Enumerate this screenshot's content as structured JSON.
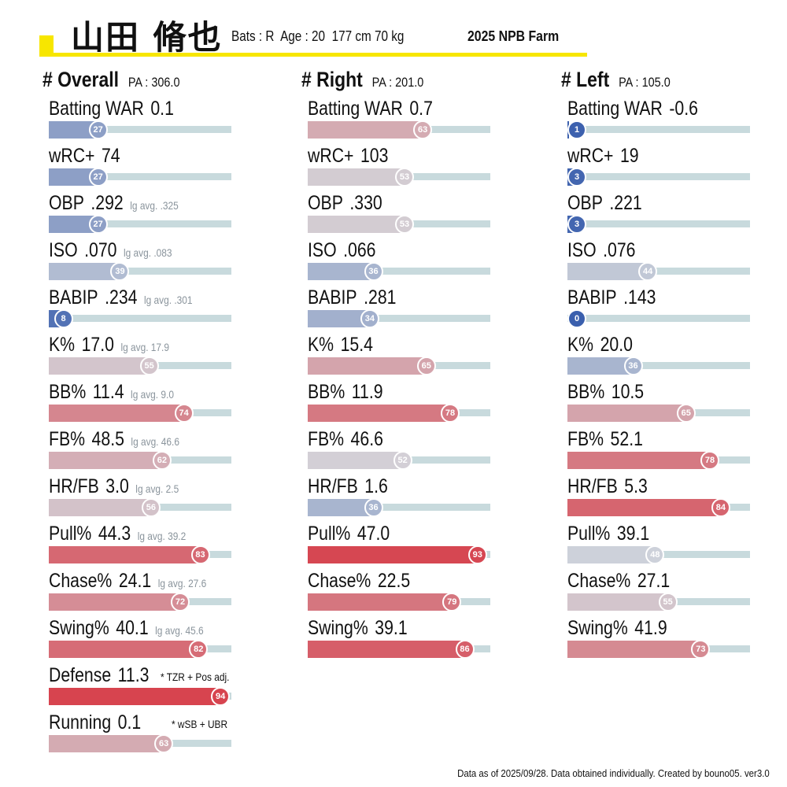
{
  "header": {
    "player_name": "山田 脩也",
    "info": "Bats : R  Age : 20  177 cm 70 kg",
    "season": "2025 NPB Farm"
  },
  "colors": {
    "accent": "#f7e600",
    "low": "#3a5fad",
    "mid": "#d3d6dc",
    "high": "#d7303c",
    "track": "#c8dadd"
  },
  "columns": [
    {
      "title": "# Overall",
      "pa": "PA : 306.0",
      "stats": [
        {
          "name": "Batting WAR",
          "value": "0.1",
          "pct": 27
        },
        {
          "name": "wRC+",
          "value": "74",
          "pct": 27
        },
        {
          "name": "OBP",
          "value": ".292",
          "avg": "lg avg. .325",
          "pct": 27
        },
        {
          "name": "ISO",
          "value": ".070",
          "avg": "lg avg. .083",
          "pct": 39
        },
        {
          "name": "BABIP",
          "value": ".234",
          "avg": "lg avg. .301",
          "pct": 8
        },
        {
          "name": "K%",
          "value": "17.0",
          "avg": "lg avg. 17.9",
          "pct": 55
        },
        {
          "name": "BB%",
          "value": "11.4",
          "avg": "lg avg. 9.0",
          "pct": 74
        },
        {
          "name": "FB%",
          "value": "48.5",
          "avg": "lg avg. 46.6",
          "pct": 62
        },
        {
          "name": "HR/FB",
          "value": "3.0",
          "avg": "lg avg. 2.5",
          "pct": 56
        },
        {
          "name": "Pull%",
          "value": "44.3",
          "avg": "lg avg. 39.2",
          "pct": 83
        },
        {
          "name": "Chase%",
          "value": "24.1",
          "avg": "lg avg. 27.6",
          "pct": 72
        },
        {
          "name": "Swing%",
          "value": "40.1",
          "avg": "lg avg. 45.6",
          "pct": 82
        },
        {
          "name": "Defense",
          "value": "11.3",
          "note": "* TZR + Pos adj.",
          "pct": 94
        },
        {
          "name": "Running",
          "value": "0.1",
          "note": "* wSB + UBR",
          "pct": 63
        }
      ]
    },
    {
      "title": "# Right",
      "pa": "PA : 201.0",
      "stats": [
        {
          "name": "Batting WAR",
          "value": "0.7",
          "pct": 63
        },
        {
          "name": "wRC+",
          "value": "103",
          "pct": 53
        },
        {
          "name": "OBP",
          "value": ".330",
          "pct": 53
        },
        {
          "name": "ISO",
          "value": ".066",
          "pct": 36
        },
        {
          "name": "BABIP",
          "value": ".281",
          "pct": 34
        },
        {
          "name": "K%",
          "value": "15.4",
          "pct": 65
        },
        {
          "name": "BB%",
          "value": "11.9",
          "pct": 78
        },
        {
          "name": "FB%",
          "value": "46.6",
          "pct": 52
        },
        {
          "name": "HR/FB",
          "value": "1.6",
          "pct": 36
        },
        {
          "name": "Pull%",
          "value": "47.0",
          "pct": 93
        },
        {
          "name": "Chase%",
          "value": "22.5",
          "pct": 79
        },
        {
          "name": "Swing%",
          "value": "39.1",
          "pct": 86
        }
      ]
    },
    {
      "title": "# Left",
      "pa": "PA : 105.0",
      "stats": [
        {
          "name": "Batting WAR",
          "value": "-0.6",
          "pct": 1
        },
        {
          "name": "wRC+",
          "value": "19",
          "pct": 3
        },
        {
          "name": "OBP",
          "value": ".221",
          "pct": 3
        },
        {
          "name": "ISO",
          "value": ".076",
          "pct": 44
        },
        {
          "name": "BABIP",
          "value": ".143",
          "pct": 0
        },
        {
          "name": "K%",
          "value": "20.0",
          "pct": 36
        },
        {
          "name": "BB%",
          "value": "10.5",
          "pct": 65
        },
        {
          "name": "FB%",
          "value": "52.1",
          "pct": 78
        },
        {
          "name": "HR/FB",
          "value": "5.3",
          "pct": 84
        },
        {
          "name": "Pull%",
          "value": "39.1",
          "pct": 48
        },
        {
          "name": "Chase%",
          "value": "27.1",
          "pct": 55
        },
        {
          "name": "Swing%",
          "value": "41.9",
          "pct": 73
        }
      ]
    }
  ],
  "footer": "Data as of 2025/09/28. Data obtained individually. Created by bouno05.  ver3.0"
}
